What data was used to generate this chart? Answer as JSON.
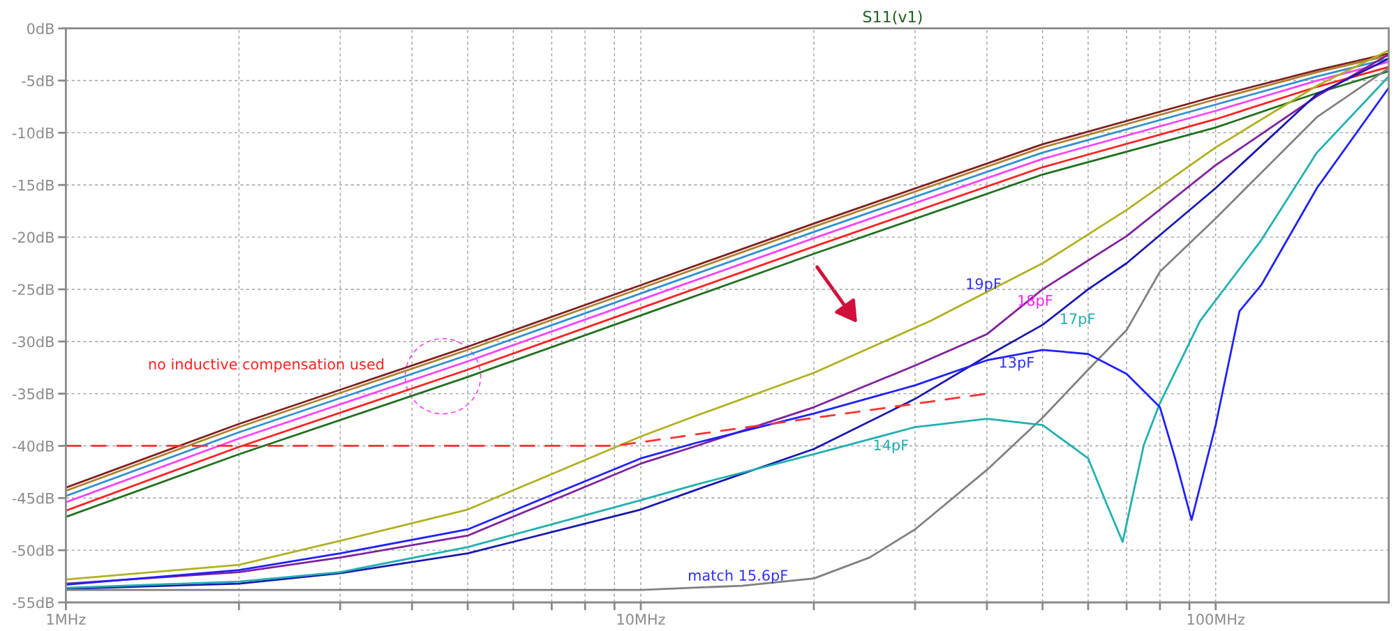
{
  "chart_data": {
    "type": "line",
    "title": "S11(v1)",
    "x": [
      1,
      2,
      5,
      10,
      20,
      50,
      100,
      150,
      200
    ],
    "xlim": [
      1,
      200
    ],
    "ylim": [
      -55,
      0
    ],
    "log": "x",
    "grid": true,
    "legend": false,
    "xticks": [
      {
        "value": 1,
        "label": "1MHz"
      },
      {
        "value": 2,
        "label": null
      },
      {
        "value": 3,
        "label": null
      },
      {
        "value": 4,
        "label": null
      },
      {
        "value": 5,
        "label": null
      },
      {
        "value": 6,
        "label": null
      },
      {
        "value": 7,
        "label": null
      },
      {
        "value": 8,
        "label": null
      },
      {
        "value": 9,
        "label": null
      },
      {
        "value": 10,
        "label": "10MHz"
      },
      {
        "value": 20,
        "label": null
      },
      {
        "value": 30,
        "label": null
      },
      {
        "value": 40,
        "label": null
      },
      {
        "value": 50,
        "label": null
      },
      {
        "value": 60,
        "label": null
      },
      {
        "value": 70,
        "label": null
      },
      {
        "value": 80,
        "label": null
      },
      {
        "value": 90,
        "label": null
      },
      {
        "value": 100,
        "label": "100MHz"
      }
    ],
    "yticks": [
      {
        "value": 0,
        "label": "0dB"
      },
      {
        "value": -5,
        "label": "-5dB"
      },
      {
        "value": -10,
        "label": "-10dB"
      },
      {
        "value": -15,
        "label": "-15dB"
      },
      {
        "value": -20,
        "label": "-20dB"
      },
      {
        "value": -25,
        "label": "-25dB"
      },
      {
        "value": -30,
        "label": "-30dB"
      },
      {
        "value": -35,
        "label": "-35dB"
      },
      {
        "value": -40,
        "label": "-40dB"
      },
      {
        "value": -45,
        "label": "-45dB"
      },
      {
        "value": -50,
        "label": "-50dB"
      },
      {
        "value": -55,
        "label": "-55dB"
      }
    ],
    "series": [
      {
        "color": "#7f1f1f",
        "values": [
          -44.0,
          -37.9,
          -30.5,
          -24.6,
          -18.7,
          -11.1,
          -6.5,
          -4.0,
          -2.4
        ]
      },
      {
        "color": "#b08030",
        "values": [
          -44.3,
          -38.2,
          -30.8,
          -24.9,
          -19.0,
          -11.4,
          -6.8,
          -4.2,
          -2.6
        ]
      },
      {
        "color": "#3090d0",
        "values": [
          -44.8,
          -38.7,
          -31.3,
          -25.4,
          -19.5,
          -11.9,
          -7.3,
          -4.6,
          -2.9
        ]
      },
      {
        "color": "#ff40ff",
        "values": [
          -45.4,
          -39.3,
          -31.9,
          -26.0,
          -20.1,
          -12.5,
          -7.9,
          -5.0,
          -3.2
        ]
      },
      {
        "color": "#ff2020",
        "values": [
          -46.2,
          -40.1,
          -32.7,
          -26.8,
          -20.9,
          -13.3,
          -8.7,
          -5.6,
          -3.7
        ]
      },
      {
        "color": "#207020",
        "values": [
          -46.8,
          -40.8,
          -33.4,
          -27.5,
          -21.6,
          -14.0,
          -9.5,
          -6.2,
          -4.1
        ]
      },
      {
        "color": "#b0b020",
        "x": [
          1,
          2,
          3,
          5,
          10,
          12.5,
          20,
          32,
          50,
          70,
          100,
          150,
          200
        ],
        "values": [
          -52.8,
          -51.4,
          -49.1,
          -46.1,
          -39.1,
          -37.1,
          -33.0,
          -28.0,
          -22.5,
          -17.4,
          -11.4,
          -5.5,
          -2.1
        ]
      },
      {
        "color": "#8020a0",
        "x": [
          1,
          2,
          3,
          5,
          10,
          12.5,
          20,
          30,
          40,
          50,
          70,
          100,
          150,
          200
        ],
        "values": [
          -53.2,
          -52.1,
          -50.7,
          -48.6,
          -41.7,
          -40.0,
          -36.3,
          -32.3,
          -29.3,
          -25.0,
          -19.9,
          -13.1,
          -6.5,
          -2.5
        ]
      },
      {
        "color": "#1818b0",
        "x": [
          1,
          2,
          3,
          5,
          10,
          12.5,
          20,
          30,
          40,
          50,
          60,
          70,
          100,
          150,
          200
        ],
        "values": [
          -53.7,
          -53.2,
          -52.2,
          -50.3,
          -46.1,
          -44.2,
          -40.3,
          -35.5,
          -31.4,
          -28.4,
          -25.0,
          -22.5,
          -15.3,
          -6.3,
          -2.9
        ]
      },
      {
        "color": "#808080",
        "x": [
          1,
          5,
          10,
          15,
          20,
          25,
          30,
          40,
          50,
          60,
          70,
          80,
          100,
          150,
          200
        ],
        "values": [
          -53.8,
          -53.8,
          -53.8,
          -53.4,
          -52.7,
          -50.7,
          -48.0,
          -42.3,
          -37.3,
          -32.7,
          -28.9,
          -23.3,
          -18.2,
          -8.5,
          -3.8
        ]
      },
      {
        "color": "#20b0b0",
        "x": [
          1,
          2,
          3,
          5,
          10,
          12.5,
          20,
          30,
          40,
          50,
          60,
          65,
          68.9,
          75,
          80,
          94,
          120,
          150,
          200
        ],
        "values": [
          -53.6,
          -53.0,
          -52.1,
          -49.7,
          -45.2,
          -43.7,
          -40.8,
          -38.2,
          -37.4,
          -38.0,
          -41.2,
          -45.9,
          -49.2,
          -39.9,
          -35.9,
          -28.0,
          -20.3,
          -11.9,
          -4.6
        ]
      },
      {
        "color": "#2020ff",
        "x": [
          1,
          2,
          3,
          5,
          10,
          12.5,
          20,
          30,
          40,
          50,
          60,
          70,
          80,
          85,
          90.8,
          100,
          110,
          120,
          150,
          200
        ],
        "values": [
          -53.3,
          -51.9,
          -50.3,
          -48.0,
          -41.2,
          -39.7,
          -36.9,
          -34.2,
          -31.8,
          -30.8,
          -31.2,
          -33.1,
          -36.3,
          -41.2,
          -47.1,
          -38.0,
          -27.1,
          -24.6,
          -15.3,
          -5.7
        ]
      },
      {
        "color": "#ff3030",
        "line_style": "dashed",
        "x": [
          1,
          9,
          40
        ],
        "values": [
          -40,
          -40,
          -35
        ]
      }
    ],
    "annotations": [
      "19pF",
      "18pF",
      "17pF",
      "13pF",
      "14pF",
      "match 15.6pF",
      "no inductive compensation used"
    ]
  }
}
